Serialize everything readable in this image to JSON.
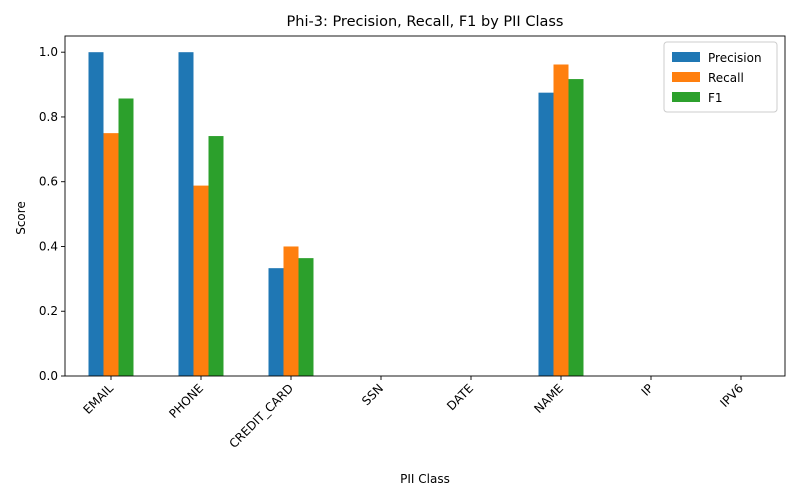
{
  "chart_data": {
    "type": "bar",
    "title": "Phi-3: Precision, Recall, F1 by PII Class",
    "xlabel": "PII Class",
    "ylabel": "Score",
    "ylim": [
      0,
      1.05
    ],
    "yticks": [
      "0.0",
      "0.2",
      "0.4",
      "0.6",
      "0.8",
      "1.0"
    ],
    "categories": [
      "EMAIL",
      "PHONE",
      "CREDIT_CARD",
      "SSN",
      "DATE",
      "NAME",
      "IP",
      "IPV6"
    ],
    "series": [
      {
        "name": "Precision",
        "color": "#1f77b4",
        "values": [
          1.0,
          1.0,
          0.333,
          0,
          0,
          0.875,
          0,
          0
        ]
      },
      {
        "name": "Recall",
        "color": "#ff7f0e",
        "values": [
          0.75,
          0.588,
          0.4,
          0,
          0,
          0.962,
          0,
          0
        ]
      },
      {
        "name": "F1",
        "color": "#2ca02c",
        "values": [
          0.857,
          0.741,
          0.364,
          0,
          0,
          0.917,
          0,
          0
        ]
      }
    ],
    "grid": false,
    "legend_position": "top-right"
  }
}
